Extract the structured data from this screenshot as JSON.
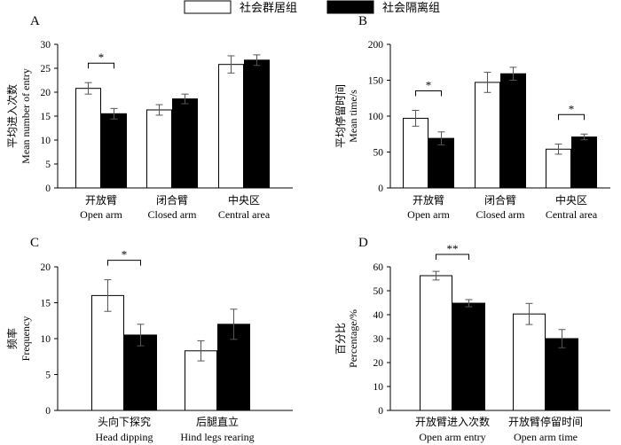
{
  "legend": {
    "group_housed": "社会群居组",
    "isolated": "社会隔离组"
  },
  "colors": {
    "group_housed": "#ffffff",
    "isolated": "#000000",
    "stroke": "#000000"
  },
  "chart_data": [
    {
      "type": "bar",
      "panel": "A",
      "title": "",
      "ylabel_cn": "平均进入次数",
      "ylabel_en": "Mean number of entry",
      "ylim": [
        0,
        30
      ],
      "yticks": [
        0,
        5,
        10,
        15,
        20,
        25,
        30
      ],
      "categories": [
        {
          "cn": "开放臂",
          "en": "Open arm"
        },
        {
          "cn": "闭合臂",
          "en": "Closed arm"
        },
        {
          "cn": "中央区",
          "en": "Central area"
        }
      ],
      "series": [
        {
          "name": "社会群居组",
          "values": [
            20.8,
            16.3,
            25.8
          ],
          "errors": [
            1.2,
            1.1,
            1.8
          ]
        },
        {
          "name": "社会隔离组",
          "values": [
            15.5,
            18.6,
            26.7
          ],
          "errors": [
            1.1,
            1.0,
            1.1
          ]
        }
      ],
      "significance": [
        {
          "category": 0,
          "label": "*"
        }
      ]
    },
    {
      "type": "bar",
      "panel": "B",
      "title": "",
      "ylabel_cn": "平均停留时间",
      "ylabel_en": "Mean time/s",
      "ylim": [
        0,
        200
      ],
      "yticks": [
        0,
        50,
        100,
        150,
        200
      ],
      "categories": [
        {
          "cn": "开放臂",
          "en": "Open arm"
        },
        {
          "cn": "闭合臂",
          "en": "Closed arm"
        },
        {
          "cn": "中央区",
          "en": "Central area"
        }
      ],
      "series": [
        {
          "name": "社会群居组",
          "values": [
            97,
            147,
            54
          ],
          "errors": [
            11,
            14,
            7
          ]
        },
        {
          "name": "社会隔离组",
          "values": [
            69,
            159,
            71
          ],
          "errors": [
            9,
            9,
            4
          ]
        }
      ],
      "significance": [
        {
          "category": 0,
          "label": "*"
        },
        {
          "category": 2,
          "label": "*"
        }
      ]
    },
    {
      "type": "bar",
      "panel": "C",
      "title": "",
      "ylabel_cn": "频率",
      "ylabel_en": "Frequency",
      "ylim": [
        0,
        20
      ],
      "yticks": [
        0,
        5,
        10,
        15,
        20
      ],
      "categories": [
        {
          "cn": "头向下探究",
          "en": "Head dipping"
        },
        {
          "cn": "后腿直立",
          "en": "Hind legs rearing"
        }
      ],
      "series": [
        {
          "name": "社会群居组",
          "values": [
            16.0,
            8.3
          ],
          "errors": [
            2.2,
            1.4
          ]
        },
        {
          "name": "社会隔离组",
          "values": [
            10.5,
            12.0
          ],
          "errors": [
            1.5,
            2.1
          ]
        }
      ],
      "significance": [
        {
          "category": 0,
          "label": "*"
        }
      ]
    },
    {
      "type": "bar",
      "panel": "D",
      "title": "",
      "ylabel_cn": "百分比",
      "ylabel_en": "Percentage/%",
      "ylim": [
        0,
        60
      ],
      "yticks": [
        0,
        10,
        20,
        30,
        40,
        50,
        60
      ],
      "categories": [
        {
          "cn": "开放臂进入次数",
          "en": "Open arm entry"
        },
        {
          "cn": "开放臂停留时间",
          "en": "Open arm time"
        }
      ],
      "series": [
        {
          "name": "社会群居组",
          "values": [
            56.3,
            40.3
          ],
          "errors": [
            1.8,
            4.4
          ]
        },
        {
          "name": "社会隔离组",
          "values": [
            44.8,
            30.0
          ],
          "errors": [
            1.5,
            3.8
          ]
        }
      ],
      "significance": [
        {
          "category": 0,
          "label": "**"
        }
      ]
    }
  ]
}
